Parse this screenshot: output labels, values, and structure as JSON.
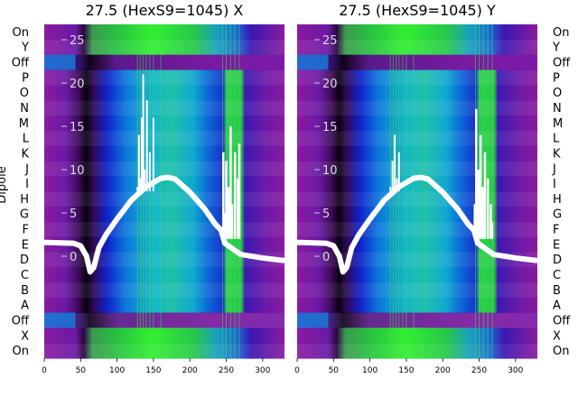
{
  "chart_data": [
    {
      "type": "heatmap",
      "title": "27.5 (HexS9=1045) X",
      "ylabel": "Dipole",
      "xlim": [
        0,
        330
      ],
      "x_ticks": [
        0,
        50,
        100,
        150,
        200,
        250,
        300
      ],
      "row_labels": [
        "On",
        "Y",
        "Off",
        "P",
        "O",
        "N",
        "M",
        "L",
        "K",
        "J",
        "I",
        "H",
        "G",
        "F",
        "E",
        "D",
        "C",
        "B",
        "A",
        "Off",
        "X",
        "On"
      ],
      "overlay_ylim": [
        -3,
        27
      ],
      "overlay_y_ticks": [
        0,
        5,
        10,
        15,
        20,
        25
      ],
      "overlay_trace": {
        "x": [
          0,
          40,
          50,
          58,
          63,
          68,
          75,
          85,
          100,
          120,
          140,
          160,
          170,
          180,
          200,
          220,
          235,
          243
        ],
        "y": [
          1.6,
          1.5,
          1.2,
          0.0,
          -1.8,
          -1.3,
          1.0,
          2.5,
          4.3,
          6.5,
          8.0,
          9.0,
          9.1,
          8.9,
          7.4,
          5.5,
          3.7,
          3.0
        ]
      },
      "spikes_a": [
        [
          128,
          8
        ],
        [
          130,
          14
        ],
        [
          132,
          9
        ],
        [
          134,
          16
        ],
        [
          136,
          21
        ],
        [
          138,
          10
        ],
        [
          141,
          18
        ],
        [
          145,
          12
        ],
        [
          150,
          16
        ]
      ],
      "spikes_b": [
        [
          244,
          3
        ],
        [
          246,
          12
        ],
        [
          248,
          5
        ],
        [
          250,
          11
        ],
        [
          253,
          8
        ],
        [
          256,
          15
        ],
        [
          258,
          6
        ],
        [
          262,
          12
        ],
        [
          266,
          9
        ],
        [
          268,
          13
        ]
      ]
    },
    {
      "type": "heatmap",
      "title": "27.5 (HexS9=1045) Y",
      "xlim": [
        0,
        330
      ],
      "x_ticks": [
        0,
        50,
        100,
        150,
        200,
        250,
        300
      ],
      "row_labels": [
        "On",
        "Y",
        "Off",
        "P",
        "O",
        "N",
        "M",
        "L",
        "K",
        "J",
        "I",
        "H",
        "G",
        "F",
        "E",
        "D",
        "C",
        "B",
        "A",
        "Off",
        "X",
        "On"
      ],
      "overlay_ylim": [
        -3,
        27
      ],
      "overlay_y_ticks": [
        0,
        5,
        10,
        15,
        20,
        25
      ],
      "overlay_trace": {
        "x": [
          0,
          40,
          50,
          58,
          63,
          68,
          75,
          85,
          100,
          120,
          140,
          160,
          170,
          180,
          200,
          220,
          235,
          243
        ],
        "y": [
          1.6,
          1.5,
          1.2,
          0.0,
          -1.8,
          -1.3,
          1.0,
          2.5,
          4.3,
          6.5,
          8.0,
          9.0,
          9.1,
          8.9,
          7.4,
          5.5,
          3.7,
          3.0
        ]
      },
      "spikes_a": [
        [
          128,
          8
        ],
        [
          131,
          11
        ],
        [
          134,
          14
        ],
        [
          137,
          9
        ],
        [
          140,
          12
        ]
      ],
      "spikes_b": [
        [
          244,
          6
        ],
        [
          246,
          17
        ],
        [
          249,
          10
        ],
        [
          252,
          14
        ],
        [
          255,
          8
        ],
        [
          258,
          12
        ],
        [
          262,
          9
        ],
        [
          266,
          6
        ],
        [
          268,
          4
        ]
      ]
    }
  ]
}
